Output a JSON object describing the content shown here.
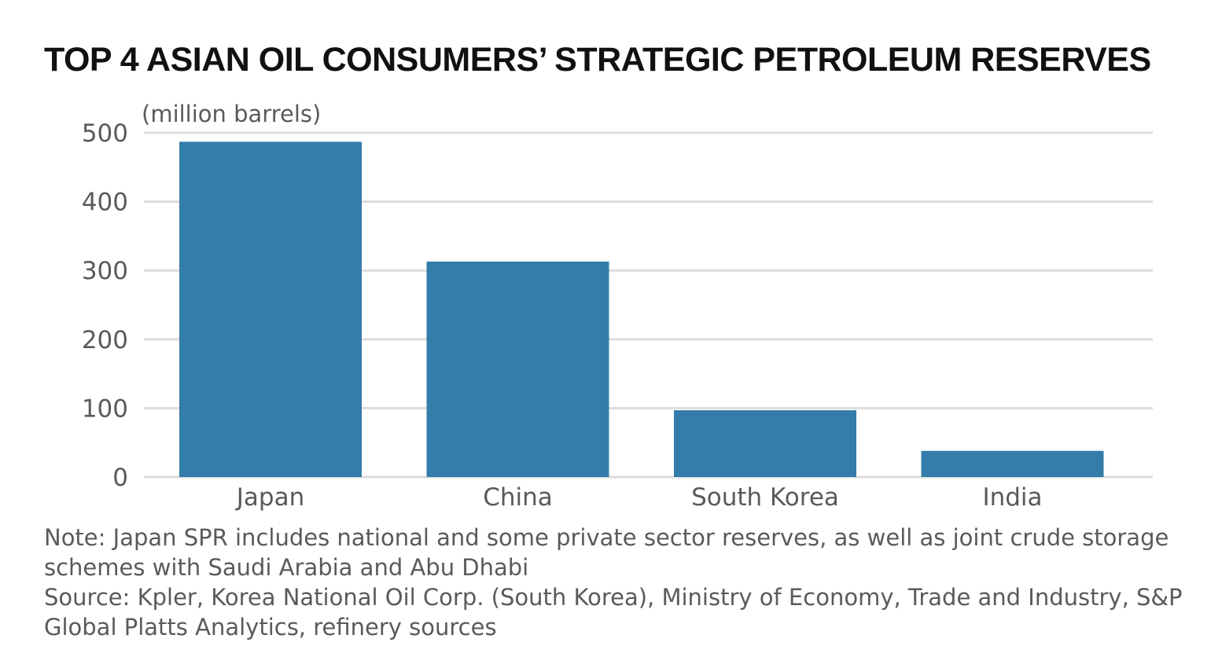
{
  "title": "TOP 4 ASIAN OIL CONSUMERS’ STRATEGIC PETROLEUM RESERVES",
  "unit_label": "(million barrels)",
  "note": "Note: Japan SPR includes national and some private sector reserves, as well as joint crude storage schemes with Saudi Arabia and Abu Dhabi",
  "source": "Source: Kpler, Korea National Oil Corp. (South Korea), Ministry of Economy, Trade and Industry, S&P Global Platts Analytics, refinery sources",
  "colors": {
    "bar": "#347ca9",
    "grid": "#dddddd",
    "tick_text": "#5a5a5a"
  },
  "chart_data": {
    "type": "bar",
    "title": "TOP 4 ASIAN OIL CONSUMERS’ STRATEGIC PETROLEUM RESERVES",
    "ylabel": "(million barrels)",
    "xlabel": "",
    "categories": [
      "Japan",
      "China",
      "South Korea",
      "India"
    ],
    "values": [
      487,
      313,
      97,
      38
    ],
    "ylim": [
      0,
      500
    ],
    "yticks": [
      0,
      100,
      200,
      300,
      400,
      500
    ],
    "grid": true,
    "legend": "none"
  }
}
